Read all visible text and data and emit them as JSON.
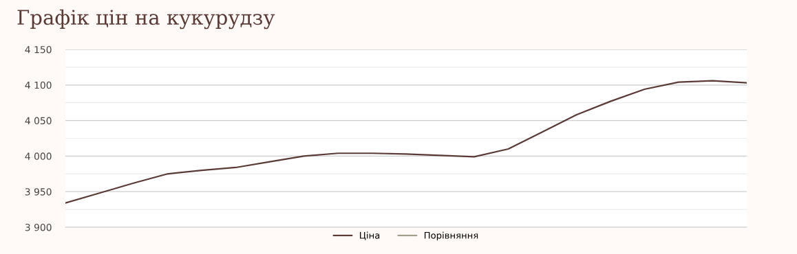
{
  "chart_data": {
    "type": "line",
    "title": "Графік цін на кукурудзу",
    "categories": [
      null,
      null,
      null,
      null,
      null,
      null,
      null,
      null,
      null,
      null,
      null,
      null,
      null,
      null,
      null,
      null,
      null,
      null,
      null,
      null,
      null
    ],
    "series": [
      {
        "name": "Ціна",
        "color": "#5a3a35",
        "values": [
          3934,
          3948,
          3962,
          3975,
          3980,
          3984,
          3992,
          4000,
          4004,
          4004,
          4003,
          4001,
          3999,
          4010,
          4034,
          4058,
          4077,
          4094,
          4104,
          4106,
          4103
        ]
      },
      {
        "name": "Порівняння",
        "color": "#a0a08a",
        "values": [
          null,
          null,
          null,
          null,
          null,
          null,
          null,
          null,
          null,
          null,
          null,
          null,
          null,
          null,
          null,
          null,
          null,
          null,
          null,
          null,
          null
        ]
      }
    ],
    "ylim": [
      3900,
      4150
    ],
    "yticks": [
      {
        "value": 3900,
        "label": "3 900"
      },
      {
        "value": 3925,
        "label": null
      },
      {
        "value": 3950,
        "label": "3 950"
      },
      {
        "value": 3975,
        "label": null
      },
      {
        "value": 4000,
        "label": "4 000"
      },
      {
        "value": 4025,
        "label": null
      },
      {
        "value": 4050,
        "label": "4 050"
      },
      {
        "value": 4075,
        "label": null
      },
      {
        "value": 4100,
        "label": "4 100"
      },
      {
        "value": 4125,
        "label": null
      },
      {
        "value": 4150,
        "label": "4 150"
      }
    ],
    "grid": "y",
    "legend": "bottom",
    "marker": "none",
    "line_style": "solid"
  }
}
